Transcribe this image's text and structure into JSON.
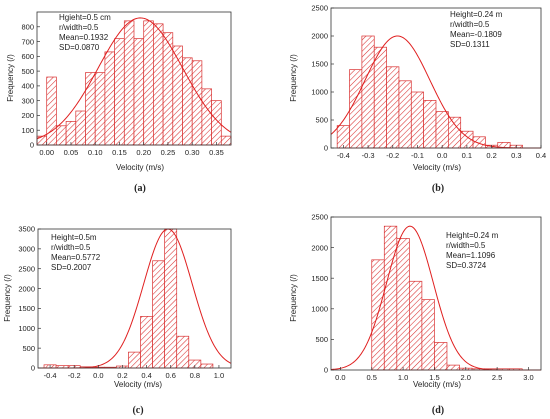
{
  "panels": [
    {
      "caption": "(a)",
      "annotations": [
        "Hgieht=0.5 cm",
        "r/width=0.5",
        "Mean=0.1932",
        "SD=0.0870"
      ]
    },
    {
      "caption": "(b)",
      "annotations": [
        "Height=0.24 m",
        "r/width=0.5",
        "Mean=-0.1809",
        "SD=0.1311"
      ]
    },
    {
      "caption": "(c)",
      "annotations": [
        "Height=0.5m",
        "r/width=0.5",
        "Mean=0.5772",
        "SD=0.2007"
      ]
    },
    {
      "caption": "(d)",
      "annotations": [
        "Height=0.24 m",
        "r/width=0.5",
        "Mean=1.1096",
        "SD=0.3724"
      ]
    }
  ],
  "colors": {
    "bar": "#d93030",
    "fit": "#e02020",
    "axis": "#333333"
  },
  "chart_data": [
    {
      "type": "bar",
      "subtype": "histogram-with-normal-fit",
      "xlabel": "Velocity (m/s)",
      "ylabel": "Frequency (/)",
      "xlim": [
        -0.02,
        0.38
      ],
      "ylim": [
        0,
        900
      ],
      "xticks": [
        0.0,
        0.05,
        0.1,
        0.15,
        0.2,
        0.25,
        0.3,
        0.35
      ],
      "xtick_labels": [
        "0.00",
        "0.05",
        "0.10",
        "0.15",
        "0.20",
        "0.25",
        "0.30",
        "0.35"
      ],
      "yticks": [
        0,
        100,
        200,
        300,
        400,
        500,
        600,
        700,
        800
      ],
      "bin_width": 0.02,
      "bin_start": -0.02,
      "values": [
        60,
        460,
        130,
        160,
        230,
        490,
        490,
        630,
        720,
        840,
        720,
        840,
        820,
        760,
        670,
        590,
        570,
        380,
        300,
        60
      ],
      "fit": {
        "mean": 0.1932,
        "sd": 0.087,
        "peak": 860
      },
      "grid": false,
      "legend": "none"
    },
    {
      "type": "bar",
      "subtype": "histogram-with-normal-fit",
      "xlabel": "Velocity (m/s)",
      "ylabel": "Frequency (/)",
      "xlim": [
        -0.45,
        0.4
      ],
      "ylim": [
        0,
        2500
      ],
      "xticks": [
        -0.4,
        -0.3,
        -0.2,
        -0.1,
        0.0,
        0.1,
        0.2,
        0.3,
        0.4
      ],
      "xtick_labels": [
        "-0.4",
        "-0.3",
        "-0.2",
        "-0.1",
        "0.0",
        "0.1",
        "0.2",
        "0.3",
        "0.4"
      ],
      "yticks": [
        0,
        500,
        1000,
        1500,
        2000,
        2500
      ],
      "bin_width": 0.05,
      "bin_start": -0.425,
      "values": [
        400,
        1400,
        2000,
        1800,
        1450,
        1200,
        1000,
        850,
        650,
        550,
        300,
        200,
        50,
        100,
        50
      ],
      "fit": {
        "mean": -0.1809,
        "sd": 0.1311,
        "peak": 2000
      },
      "grid": false,
      "legend": "none"
    },
    {
      "type": "bar",
      "subtype": "histogram-with-normal-fit",
      "xlabel": "Velocity (m/s)",
      "ylabel": "Frequency (/)",
      "xlim": [
        -0.5,
        1.1
      ],
      "ylim": [
        0,
        3500
      ],
      "xticks": [
        -0.4,
        -0.2,
        0.0,
        0.2,
        0.4,
        0.6,
        0.8,
        1.0
      ],
      "xtick_labels": [
        "-0.4",
        "-0.2",
        "0.0",
        "0.2",
        "0.4",
        "0.6",
        "0.8",
        "1.0"
      ],
      "yticks": [
        0,
        500,
        1000,
        1500,
        2000,
        2500,
        3000,
        3500
      ],
      "bin_width": 0.1,
      "bin_start": -0.45,
      "values": [
        80,
        60,
        60,
        30,
        20,
        20,
        50,
        400,
        1300,
        2700,
        3500,
        800,
        200,
        100
      ],
      "fit": {
        "mean": 0.5772,
        "sd": 0.2007,
        "peak": 3500
      },
      "grid": false,
      "legend": "none"
    },
    {
      "type": "bar",
      "subtype": "histogram-with-normal-fit",
      "xlabel": "Velocity (m/s)",
      "ylabel": "Frequency (/)",
      "xlim": [
        -0.15,
        3.2
      ],
      "ylim": [
        0,
        2500
      ],
      "xticks": [
        0.0,
        0.5,
        1.0,
        1.5,
        2.0,
        2.5,
        3.0
      ],
      "xtick_labels": [
        "0.0",
        "0.5",
        "1.0",
        "1.5",
        "2.0",
        "2.5",
        "3.0"
      ],
      "yticks": [
        0,
        500,
        1000,
        1500,
        2000,
        2500
      ],
      "bin_width": 0.2,
      "bin_start": 0.5,
      "values": [
        1800,
        2350,
        2150,
        1450,
        1150,
        450,
        80,
        30,
        20,
        20,
        20,
        20
      ],
      "fit": {
        "mean": 1.1096,
        "sd": 0.3724,
        "peak": 2350
      },
      "grid": false,
      "legend": "none"
    }
  ]
}
